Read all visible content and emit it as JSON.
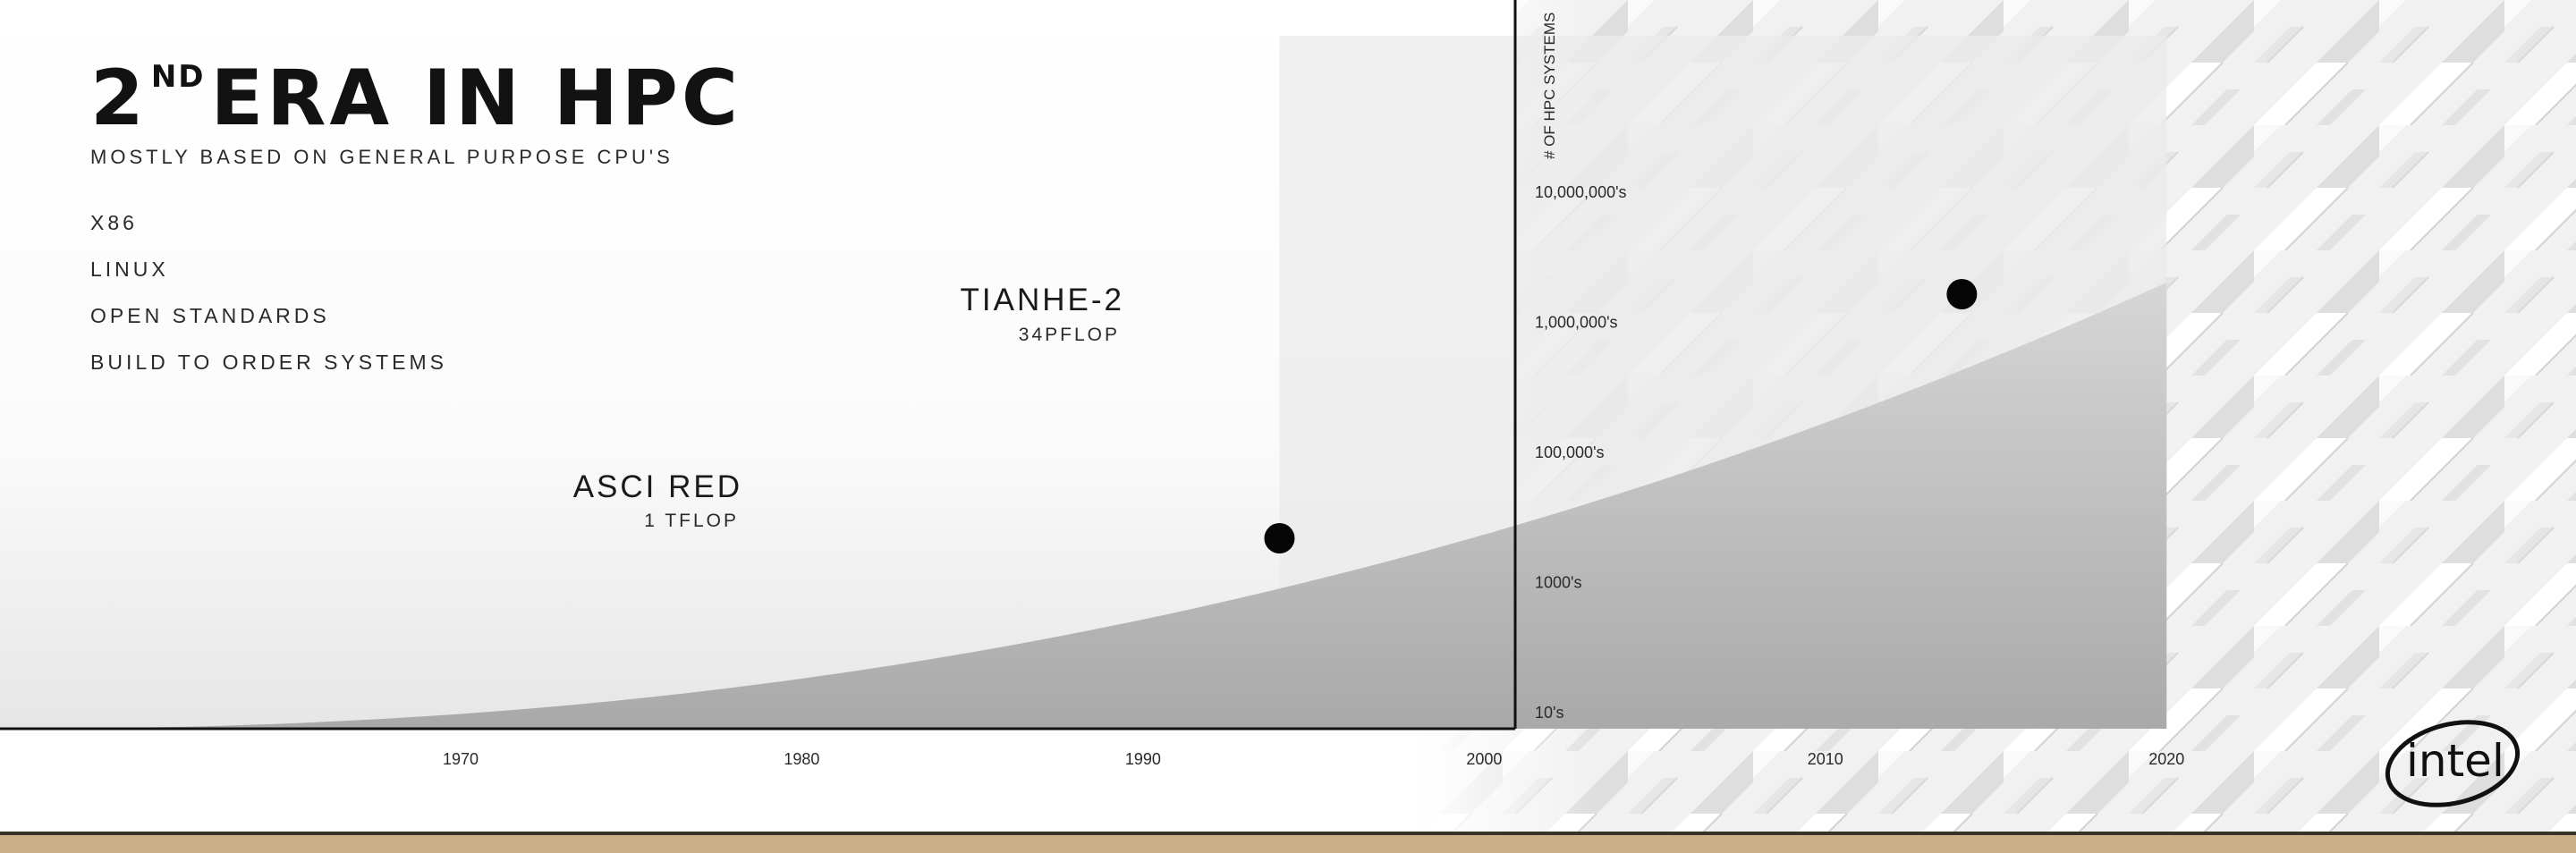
{
  "slide": {
    "title_main": "2",
    "title_sup": "ND",
    "title_rest": "ERA IN HPC",
    "subtitle": "MOSTLY BASED ON GENERAL PURPOSE CPU'S",
    "bullets": [
      "X86",
      "LINUX",
      "OPEN STANDARDS",
      "BUILD TO ORDER SYSTEMS"
    ],
    "logo_text": "intel"
  },
  "chart_data": {
    "type": "area",
    "x_ticks": [
      "1970",
      "1980",
      "1990",
      "2000",
      "2010",
      "2020"
    ],
    "xlim": [
      1956.5,
      2032
    ],
    "y_axis_label": "# OF HPC SYSTEMS",
    "y_ticks": [
      "10,000,000's",
      "1,000,000's",
      "100,000's",
      "1000's",
      "10's"
    ],
    "grid": false,
    "eras": [
      {
        "start": 1994,
        "end": 2020,
        "shade": "#cfcfcf"
      }
    ],
    "annotations": [
      {
        "name": "ASCI RED",
        "value": "1 TFLOP",
        "year": 1994
      },
      {
        "name": "TIANHE-2",
        "value": "34PFLOP",
        "year": 2014
      }
    ],
    "colors": {
      "curve_fill": "#b9b9b9",
      "era_band": "#e9e9e9",
      "axis": "#111111",
      "bottom_bar": "#c8ad7f"
    }
  }
}
